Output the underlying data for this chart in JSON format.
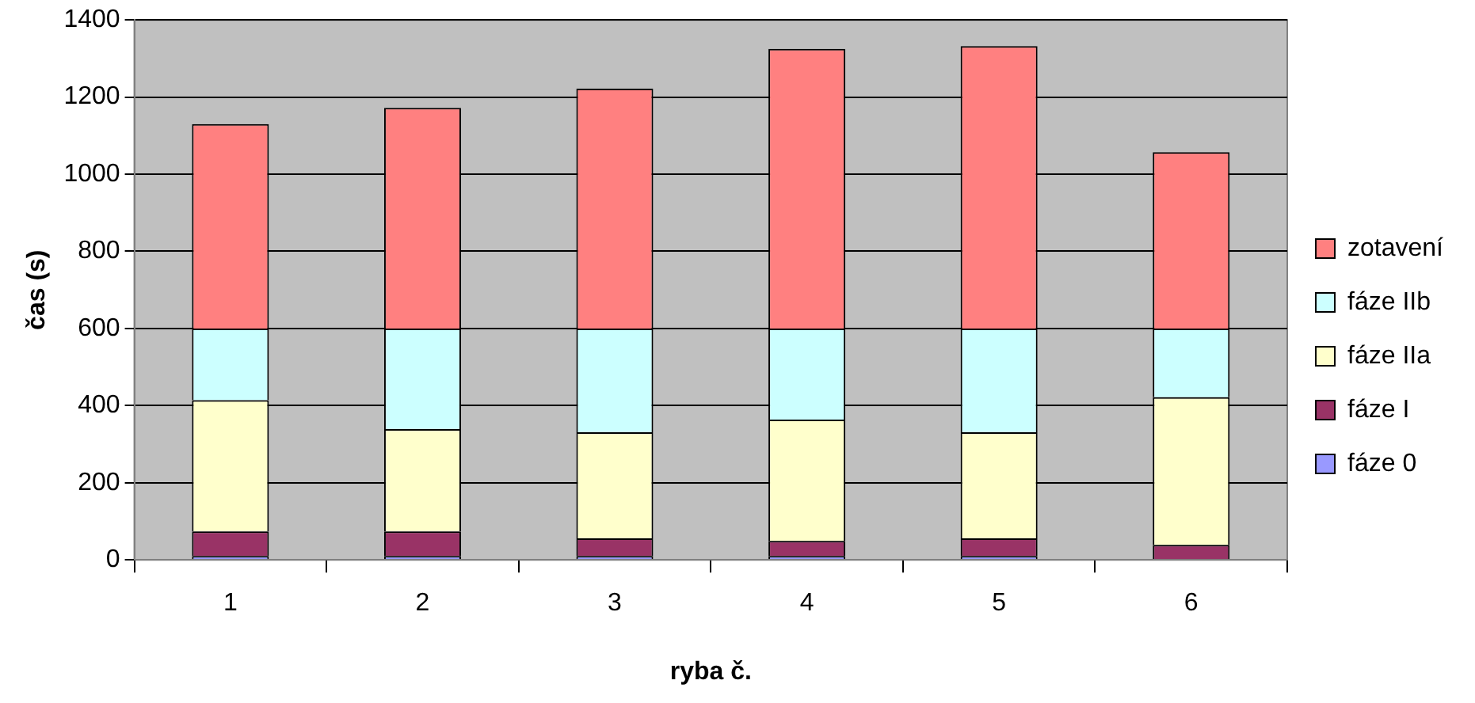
{
  "chart_data": {
    "type": "bar",
    "stacked": true,
    "xlabel": "ryba č.",
    "ylabel": "čas (s)",
    "categories": [
      "1",
      "2",
      "3",
      "4",
      "5",
      "6"
    ],
    "series": [
      {
        "name": "fáze 0",
        "color": "#9999ff",
        "values": [
          10,
          10,
          10,
          10,
          10,
          null
        ]
      },
      {
        "name": "fáze I",
        "color": "#993366",
        "values": [
          64,
          64,
          46,
          39,
          46,
          39
        ]
      },
      {
        "name": "fáze IIa",
        "color": "#ffffcc",
        "values": [
          340,
          265,
          275,
          315,
          275,
          383
        ]
      },
      {
        "name": "fáze IIb",
        "color": "#ccffff",
        "values": [
          186,
          261,
          269,
          236,
          269,
          178
        ]
      },
      {
        "name": "zotavení",
        "color": "#ff8080",
        "values": [
          530,
          572,
          622,
          725,
          732,
          457
        ]
      }
    ],
    "ylim": [
      0,
      1400
    ],
    "yticks": [
      0,
      200,
      400,
      600,
      800,
      1000,
      1200,
      1400
    ],
    "grid": "y",
    "legend": "right"
  }
}
